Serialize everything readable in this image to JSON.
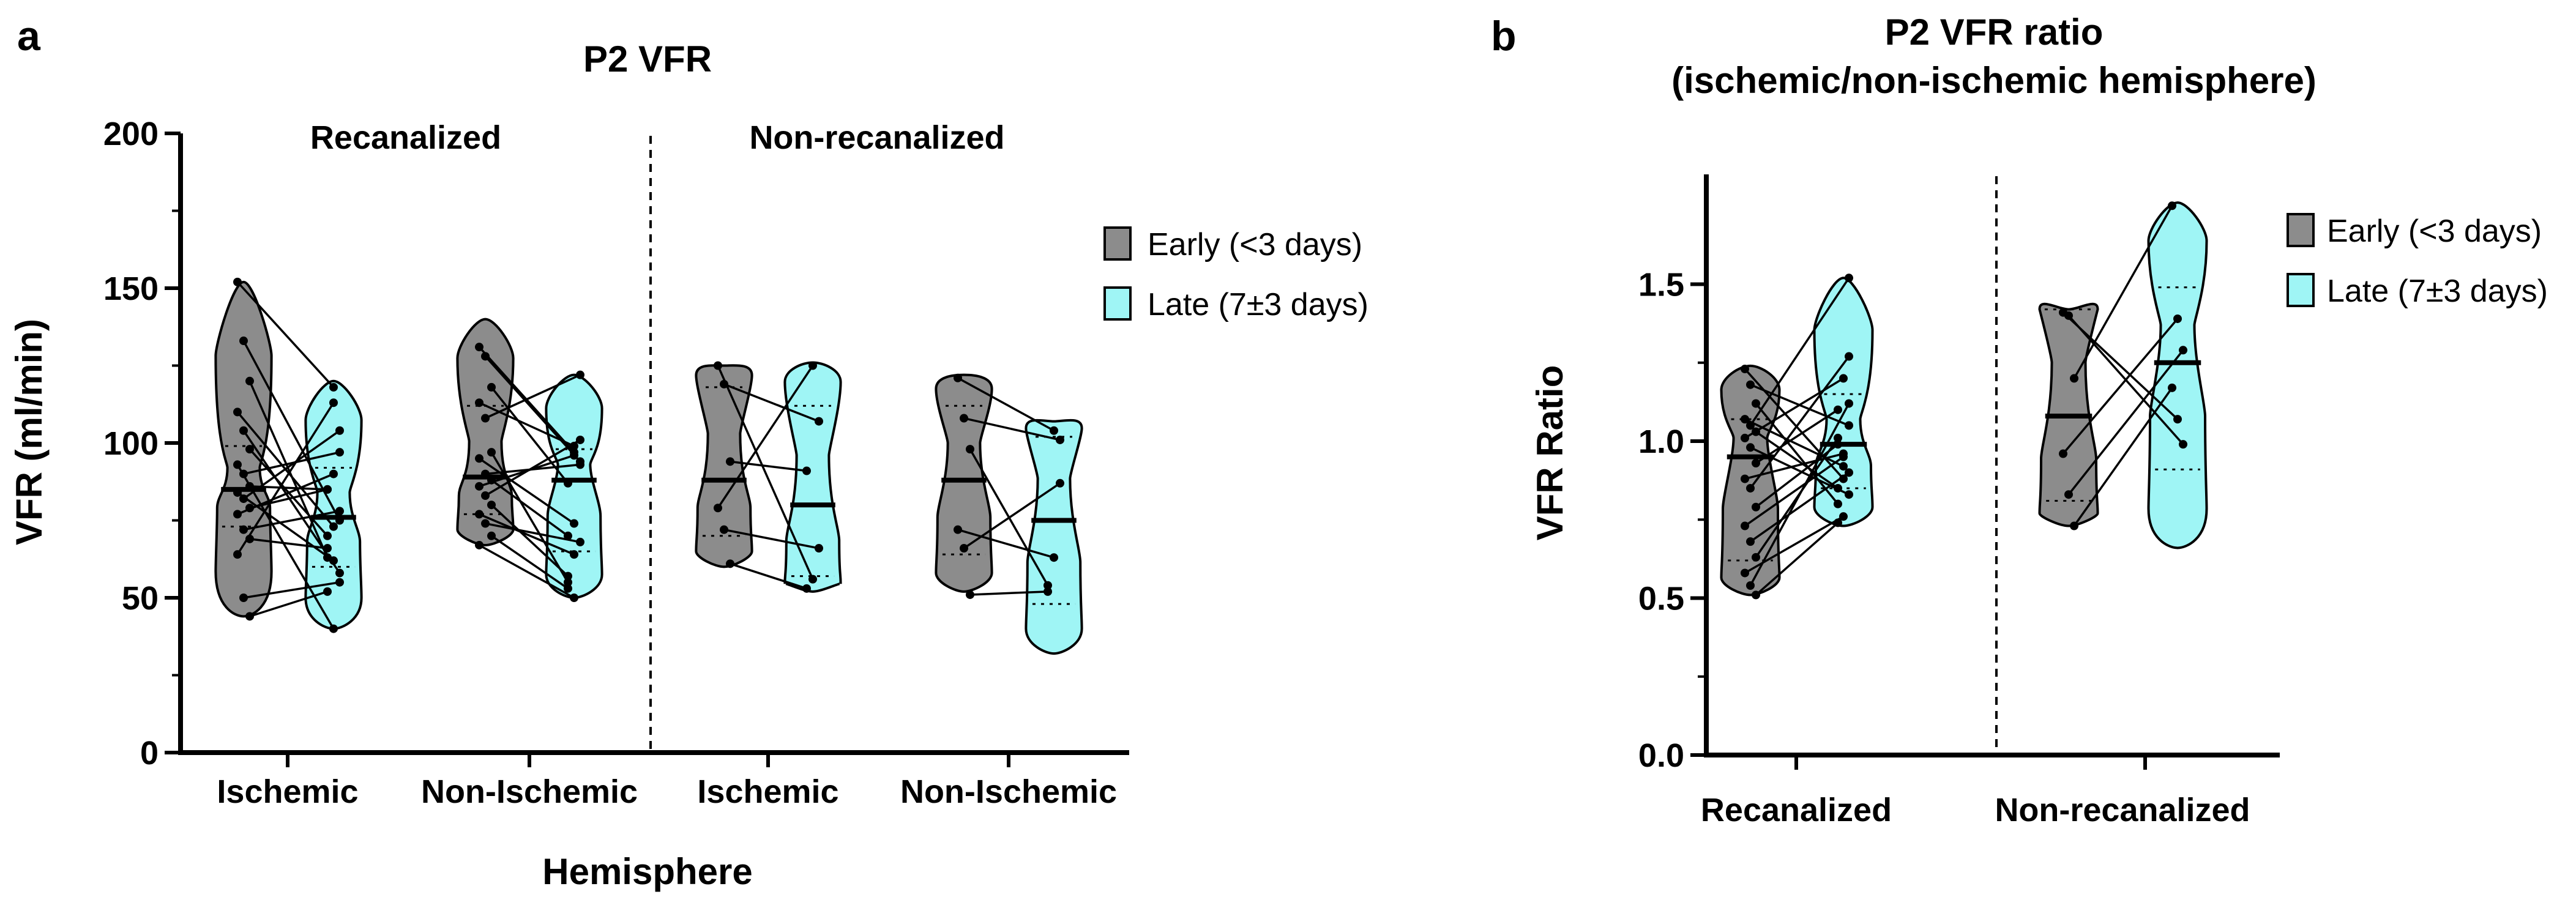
{
  "panel_a": {
    "letter": "a",
    "title": "P2 VFR",
    "ylabel": "VFR (ml/min)",
    "xlabel": "Hemisphere",
    "groups": [
      "Recanalized",
      "Non-recanalized"
    ],
    "categories": [
      "Ischemic",
      "Non-Ischemic",
      "Ischemic",
      "Non-Ischemic"
    ],
    "y_ticks": [
      "0",
      "50",
      "100",
      "150",
      "200"
    ]
  },
  "panel_b": {
    "letter": "b",
    "title_line1": "P2 VFR ratio",
    "title_line2": "(ischemic/non-ischemic hemisphere)",
    "ylabel": "VFR Ratio",
    "categories": [
      "Recanalized",
      "Non-recanalized"
    ],
    "y_ticks": [
      "0.0",
      "0.5",
      "1.0",
      "1.5"
    ]
  },
  "legend": {
    "early": "Early (<3 days)",
    "late": "Late (7±3 days)"
  },
  "colors": {
    "early": "#8c8c8c",
    "late": "#9ff5f5",
    "stroke": "#000000"
  },
  "chart_data": [
    {
      "type": "violin",
      "title": "P2 VFR",
      "xlabel": "Hemisphere",
      "ylabel": "VFR (ml/min)",
      "ylim": [
        0,
        200
      ],
      "groups": [
        "Recanalized",
        "Non-recanalized"
      ],
      "categories": [
        "Ischemic",
        "Non-Ischemic",
        "Ischemic",
        "Non-Ischemic"
      ],
      "series": [
        {
          "name": "Early (<3 days)",
          "medians": [
            85,
            89,
            88,
            88
          ],
          "quartiles": [
            [
              73,
              99
            ],
            [
              77,
              112
            ],
            [
              70,
              118
            ],
            [
              64,
              112
            ]
          ],
          "ranges": [
            [
              44,
              152
            ],
            [
              67,
              140
            ],
            [
              60,
              125
            ],
            [
              52,
              122
            ]
          ]
        },
        {
          "name": "Late (7±3 days)",
          "medians": [
            76,
            88,
            80,
            75
          ],
          "quartiles": [
            [
              60,
              92
            ],
            [
              65,
              98
            ],
            [
              57,
              112
            ],
            [
              48,
              102
            ]
          ],
          "ranges": [
            [
              40,
              120
            ],
            [
              50,
              122
            ],
            [
              52,
              126
            ],
            [
              32,
              107
            ]
          ]
        }
      ],
      "pairs": [
        [
          [
            152,
            118
          ],
          [
            133,
            75
          ],
          [
            120,
            63
          ],
          [
            110,
            73
          ],
          [
            104,
            58
          ],
          [
            98,
            70
          ],
          [
            93,
            40
          ],
          [
            90,
            97
          ],
          [
            86,
            85
          ],
          [
            84,
            62
          ],
          [
            82,
            104
          ],
          [
            79,
            85
          ],
          [
            77,
            90
          ],
          [
            72,
            78
          ],
          [
            69,
            66
          ],
          [
            64,
            113
          ],
          [
            50,
            55
          ],
          [
            44,
            52
          ]
        ],
        [
          [
            131,
            97
          ],
          [
            128,
            94
          ],
          [
            118,
            87
          ],
          [
            113,
            99
          ],
          [
            108,
            122
          ],
          [
            97,
            55
          ],
          [
            95,
            74
          ],
          [
            90,
            93
          ],
          [
            88,
            70
          ],
          [
            86,
            96
          ],
          [
            83,
            101
          ],
          [
            80,
            57
          ],
          [
            77,
            64
          ],
          [
            74,
            68
          ],
          [
            70,
            53
          ],
          [
            67,
            50
          ]
        ],
        [
          [
            125,
            56
          ],
          [
            119,
            107
          ],
          [
            94,
            91
          ],
          [
            79,
            125
          ],
          [
            72,
            66
          ],
          [
            61,
            53
          ]
        ],
        [
          [
            121,
            104
          ],
          [
            108,
            101
          ],
          [
            98,
            54
          ],
          [
            72,
            63
          ],
          [
            66,
            87
          ],
          [
            51,
            52
          ]
        ]
      ]
    },
    {
      "type": "violin",
      "title": "P2 VFR ratio (ischemic/non-ischemic hemisphere)",
      "xlabel": "",
      "ylabel": "VFR Ratio",
      "ylim": [
        0,
        1.85
      ],
      "categories": [
        "Recanalized",
        "Non-recanalized"
      ],
      "series": [
        {
          "name": "Early (<3 days)",
          "medians": [
            0.95,
            1.08
          ],
          "quartiles": [
            [
              0.62,
              1.07
            ],
            [
              0.81,
              1.42
            ]
          ],
          "ranges": [
            [
              0.51,
              1.24
            ],
            [
              0.73,
              1.42
            ]
          ]
        },
        {
          "name": "Late (7±3 days)",
          "medians": [
            0.99,
            1.25
          ],
          "quartiles": [
            [
              0.85,
              1.15
            ],
            [
              0.91,
              1.49
            ]
          ],
          "ranges": [
            [
              0.73,
              1.52
            ],
            [
              0.66,
              1.76
            ]
          ]
        }
      ],
      "pairs": [
        [
          [
            1.23,
            0.88
          ],
          [
            1.18,
            1.05
          ],
          [
            1.12,
            0.8
          ],
          [
            1.07,
            0.92
          ],
          [
            1.05,
            1.52
          ],
          [
            1.03,
            0.85
          ],
          [
            1.01,
            1.2
          ],
          [
            0.98,
            0.83
          ],
          [
            0.93,
            1.1
          ],
          [
            0.88,
            0.96
          ],
          [
            0.85,
            1.27
          ],
          [
            0.79,
            0.99
          ],
          [
            0.73,
            0.95
          ],
          [
            0.68,
            0.9
          ],
          [
            0.63,
            1.01
          ],
          [
            0.58,
            0.76
          ],
          [
            0.54,
            1.12
          ],
          [
            0.51,
            0.74
          ]
        ],
        [
          [
            1.41,
            1.07
          ],
          [
            1.4,
            0.99
          ],
          [
            1.2,
            1.75
          ],
          [
            0.96,
            1.39
          ],
          [
            0.83,
            1.29
          ],
          [
            0.73,
            1.17
          ]
        ]
      ]
    }
  ]
}
